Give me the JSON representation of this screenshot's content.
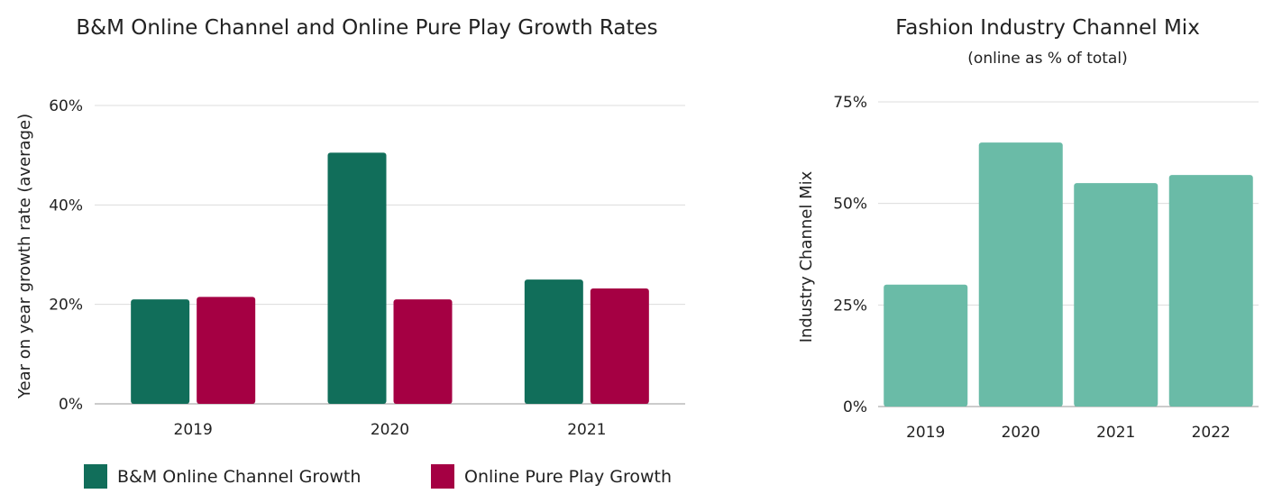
{
  "chart_data": [
    {
      "type": "bar",
      "title": "B&M Online Channel and Online Pure Play Growth Rates",
      "xlabel": "",
      "ylabel": "Year on year growth rate (average)",
      "categories": [
        "2019",
        "2020",
        "2021"
      ],
      "series": [
        {
          "name": "B&M Online Channel Growth",
          "values": [
            21,
            50.5,
            25
          ],
          "color": "#116e5a"
        },
        {
          "name": "Online Pure Play Growth",
          "values": [
            21.5,
            21,
            23.2
          ],
          "color": "#a50043"
        }
      ],
      "ylim": [
        0,
        60
      ],
      "yticks": [
        0,
        20,
        40,
        60
      ],
      "ytick_labels": [
        "0%",
        "20%",
        "40%",
        "60%"
      ],
      "grid": true,
      "legend": "bottom"
    },
    {
      "type": "bar",
      "title": "Fashion Industry Channel Mix",
      "subtitle": "(online as % of total)",
      "xlabel": "",
      "ylabel": "Industry Channel Mix",
      "categories": [
        "2019",
        "2020",
        "2021",
        "2022"
      ],
      "series": [
        {
          "values": [
            30,
            65,
            55,
            57
          ],
          "color": "#6abba7"
        }
      ],
      "ylim": [
        0,
        75
      ],
      "yticks": [
        0,
        25,
        50,
        75
      ],
      "ytick_labels": [
        "0%",
        "25%",
        "50%",
        "75%"
      ],
      "grid": true
    }
  ]
}
